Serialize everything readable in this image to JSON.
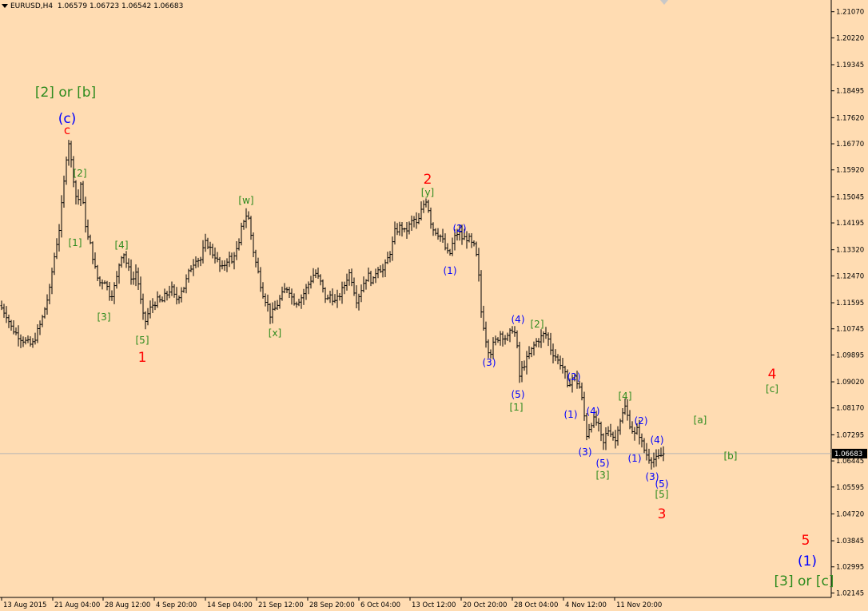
{
  "header": {
    "symbol": "EURUSD,H4",
    "ohlc": "1.06579 1.06723 1.06542 1.06683"
  },
  "price_tag": "1.06683",
  "colors": {
    "background": "#ffdcb2",
    "candles": "#000000",
    "red": "#ff0000",
    "blue": "#0000ff",
    "green": "#2e8b1e",
    "bid_line": "#b4b4b4",
    "price_tag_bg": "#000000"
  },
  "chart_data": {
    "type": "candlestick",
    "ylim": [
      1.02,
      1.214
    ],
    "y_ticks": [
      "1.21070",
      "1.20220",
      "1.19345",
      "1.18495",
      "1.17620",
      "1.16770",
      "1.15920",
      "1.15045",
      "1.14195",
      "1.13320",
      "1.12470",
      "1.11595",
      "1.10745",
      "1.09895",
      "1.09020",
      "1.08170",
      "1.07295",
      "1.06445",
      "1.05595",
      "1.04720",
      "1.03845",
      "1.02995",
      "1.02145"
    ],
    "x_ticks": [
      "13 Aug 2015",
      "21 Aug 04:00",
      "28 Aug 12:00",
      "4 Sep 20:00",
      "14 Sep 04:00",
      "21 Sep 12:00",
      "28 Sep 20:00",
      "6 Oct 04:00",
      "13 Oct 12:00",
      "20 Oct 20:00",
      "28 Oct 04:00",
      "4 Nov 12:00",
      "11 Nov 20:00"
    ],
    "last_price": 1.06683,
    "price_path": [
      [
        0,
        1.115
      ],
      [
        8,
        1.112
      ],
      [
        14,
        1.108
      ],
      [
        20,
        1.106
      ],
      [
        28,
        1.104
      ],
      [
        34,
        1.103
      ],
      [
        40,
        1.102
      ],
      [
        46,
        1.106
      ],
      [
        52,
        1.11
      ],
      [
        58,
        1.116
      ],
      [
        62,
        1.12
      ],
      [
        66,
        1.128
      ],
      [
        70,
        1.134
      ],
      [
        74,
        1.14
      ],
      [
        78,
        1.15
      ],
      [
        82,
        1.16
      ],
      [
        85,
        1.1705
      ],
      [
        88,
        1.164
      ],
      [
        91,
        1.158
      ],
      [
        94,
        1.153
      ],
      [
        97,
        1.146
      ],
      [
        100,
        1.157
      ],
      [
        103,
        1.15
      ],
      [
        106,
        1.143
      ],
      [
        110,
        1.137
      ],
      [
        114,
        1.134
      ],
      [
        118,
        1.128
      ],
      [
        122,
        1.124
      ],
      [
        126,
        1.122
      ],
      [
        130,
        1.124
      ],
      [
        134,
        1.121
      ],
      [
        138,
        1.118
      ],
      [
        142,
        1.12
      ],
      [
        146,
        1.124
      ],
      [
        150,
        1.13
      ],
      [
        154,
        1.133
      ],
      [
        158,
        1.129
      ],
      [
        162,
        1.126
      ],
      [
        166,
        1.123
      ],
      [
        170,
        1.126
      ],
      [
        174,
        1.121
      ],
      [
        178,
        1.112
      ],
      [
        182,
        1.11
      ],
      [
        186,
        1.113
      ],
      [
        190,
        1.115
      ],
      [
        194,
        1.116
      ],
      [
        198,
        1.117
      ],
      [
        202,
        1.116
      ],
      [
        206,
        1.118
      ],
      [
        210,
        1.119
      ],
      [
        214,
        1.121
      ],
      [
        218,
        1.118
      ],
      [
        222,
        1.117
      ],
      [
        226,
        1.12
      ],
      [
        230,
        1.121
      ],
      [
        234,
        1.124
      ],
      [
        238,
        1.127
      ],
      [
        242,
        1.129
      ],
      [
        246,
        1.131
      ],
      [
        250,
        1.129
      ],
      [
        254,
        1.133
      ],
      [
        258,
        1.136
      ],
      [
        262,
        1.134
      ],
      [
        266,
        1.132
      ],
      [
        270,
        1.131
      ],
      [
        274,
        1.128
      ],
      [
        278,
        1.127
      ],
      [
        282,
        1.129
      ],
      [
        286,
        1.131
      ],
      [
        290,
        1.129
      ],
      [
        294,
        1.133
      ],
      [
        298,
        1.133
      ],
      [
        302,
        1.14
      ],
      [
        306,
        1.144
      ],
      [
        310,
        1.145
      ],
      [
        314,
        1.138
      ],
      [
        318,
        1.131
      ],
      [
        322,
        1.127
      ],
      [
        326,
        1.122
      ],
      [
        330,
        1.118
      ],
      [
        334,
        1.116
      ],
      [
        338,
        1.112
      ],
      [
        342,
        1.113
      ],
      [
        346,
        1.115
      ],
      [
        350,
        1.117
      ],
      [
        354,
        1.119
      ],
      [
        358,
        1.121
      ],
      [
        362,
        1.12
      ],
      [
        366,
        1.117
      ],
      [
        370,
        1.116
      ],
      [
        374,
        1.117
      ],
      [
        378,
        1.118
      ],
      [
        382,
        1.12
      ],
      [
        386,
        1.122
      ],
      [
        390,
        1.124
      ],
      [
        394,
        1.126
      ],
      [
        398,
        1.124
      ],
      [
        402,
        1.122
      ],
      [
        406,
        1.118
      ],
      [
        410,
        1.117
      ],
      [
        414,
        1.119
      ],
      [
        418,
        1.116
      ],
      [
        422,
        1.117
      ],
      [
        426,
        1.119
      ],
      [
        430,
        1.121
      ],
      [
        434,
        1.124
      ],
      [
        438,
        1.126
      ],
      [
        442,
        1.121
      ],
      [
        446,
        1.117
      ],
      [
        450,
        1.119
      ],
      [
        454,
        1.122
      ],
      [
        458,
        1.124
      ],
      [
        462,
        1.125
      ],
      [
        466,
        1.122
      ],
      [
        470,
        1.126
      ],
      [
        474,
        1.128
      ],
      [
        478,
        1.126
      ],
      [
        482,
        1.128
      ],
      [
        486,
        1.131
      ],
      [
        490,
        1.134
      ],
      [
        494,
        1.139
      ],
      [
        498,
        1.14
      ],
      [
        502,
        1.141
      ],
      [
        506,
        1.139
      ],
      [
        510,
        1.14
      ],
      [
        514,
        1.142
      ],
      [
        518,
        1.143
      ],
      [
        522,
        1.141
      ],
      [
        526,
        1.145
      ],
      [
        530,
        1.148
      ],
      [
        534,
        1.15
      ],
      [
        538,
        1.143
      ],
      [
        542,
        1.14
      ],
      [
        546,
        1.139
      ],
      [
        550,
        1.138
      ],
      [
        554,
        1.136
      ],
      [
        558,
        1.133
      ],
      [
        562,
        1.131
      ],
      [
        566,
        1.135
      ],
      [
        570,
        1.138
      ],
      [
        574,
        1.139
      ],
      [
        578,
        1.137
      ],
      [
        582,
        1.137
      ],
      [
        586,
        1.137
      ],
      [
        590,
        1.135
      ],
      [
        594,
        1.134
      ],
      [
        598,
        1.128
      ],
      [
        602,
        1.113
      ],
      [
        606,
        1.107
      ],
      [
        610,
        1.101
      ],
      [
        614,
        1.1
      ],
      [
        618,
        1.103
      ],
      [
        622,
        1.104
      ],
      [
        626,
        1.106
      ],
      [
        630,
        1.105
      ],
      [
        634,
        1.104
      ],
      [
        638,
        1.106
      ],
      [
        642,
        1.108
      ],
      [
        646,
        1.104
      ],
      [
        650,
        1.092
      ],
      [
        654,
        1.095
      ],
      [
        658,
        1.097
      ],
      [
        662,
        1.099
      ],
      [
        666,
        1.101
      ],
      [
        670,
        1.103
      ],
      [
        674,
        1.104
      ],
      [
        678,
        1.105
      ],
      [
        682,
        1.106
      ],
      [
        686,
        1.104
      ],
      [
        690,
        1.1
      ],
      [
        694,
        1.099
      ],
      [
        698,
        1.097
      ],
      [
        702,
        1.096
      ],
      [
        706,
        1.094
      ],
      [
        710,
        1.088
      ],
      [
        714,
        1.091
      ],
      [
        718,
        1.092
      ],
      [
        722,
        1.09
      ],
      [
        726,
        1.088
      ],
      [
        730,
        1.081
      ],
      [
        734,
        1.073
      ],
      [
        738,
        1.076
      ],
      [
        742,
        1.078
      ],
      [
        746,
        1.077
      ],
      [
        750,
        1.075
      ],
      [
        754,
        1.069
      ],
      [
        758,
        1.073
      ],
      [
        762,
        1.075
      ],
      [
        766,
        1.073
      ],
      [
        770,
        1.071
      ],
      [
        774,
        1.077
      ],
      [
        778,
        1.079
      ],
      [
        782,
        1.082
      ],
      [
        786,
        1.078
      ],
      [
        790,
        1.075
      ],
      [
        794,
        1.073
      ],
      [
        798,
        1.075
      ],
      [
        802,
        1.071
      ],
      [
        806,
        1.068
      ],
      [
        810,
        1.066
      ],
      [
        814,
        1.065
      ],
      [
        818,
        1.065
      ],
      [
        822,
        1.065
      ],
      [
        826,
        1.066
      ],
      [
        830,
        1.06683
      ]
    ],
    "annotations": [
      {
        "text": "[2] or [b]",
        "color": "green",
        "size": 17
      },
      {
        "text": "(c)",
        "color": "blue",
        "size": 17
      },
      {
        "text": "c",
        "color": "red",
        "size": 15
      },
      {
        "text": "[2]",
        "color": "green",
        "size": 12
      },
      {
        "text": "[1]",
        "color": "green",
        "size": 12
      },
      {
        "text": "[4]",
        "color": "green",
        "size": 12
      },
      {
        "text": "[3]",
        "color": "green",
        "size": 12
      },
      {
        "text": "[5]",
        "color": "green",
        "size": 12
      },
      {
        "text": "1",
        "color": "red",
        "size": 17
      },
      {
        "text": "[w]",
        "color": "green",
        "size": 12
      },
      {
        "text": "[x]",
        "color": "green",
        "size": 12
      },
      {
        "text": "2",
        "color": "red",
        "size": 17
      },
      {
        "text": "[y]",
        "color": "green",
        "size": 12
      },
      {
        "text": "(2)",
        "color": "blue",
        "size": 12
      },
      {
        "text": "(1)",
        "color": "blue",
        "size": 12
      },
      {
        "text": "(4)",
        "color": "blue",
        "size": 12
      },
      {
        "text": "(3)",
        "color": "blue",
        "size": 12
      },
      {
        "text": "[2]",
        "color": "green",
        "size": 12
      },
      {
        "text": "(5)",
        "color": "blue",
        "size": 12
      },
      {
        "text": "[1]",
        "color": "green",
        "size": 12
      },
      {
        "text": "(2)",
        "color": "blue",
        "size": 12
      },
      {
        "text": "(1)",
        "color": "blue",
        "size": 12
      },
      {
        "text": "(4)",
        "color": "blue",
        "size": 12
      },
      {
        "text": "(3)",
        "color": "blue",
        "size": 12
      },
      {
        "text": "(5)",
        "color": "blue",
        "size": 12
      },
      {
        "text": "[3]",
        "color": "green",
        "size": 12
      },
      {
        "text": "[4]",
        "color": "green",
        "size": 12
      },
      {
        "text": "(2)",
        "color": "blue",
        "size": 12
      },
      {
        "text": "(1)",
        "color": "blue",
        "size": 12
      },
      {
        "text": "(4)",
        "color": "blue",
        "size": 12
      },
      {
        "text": "(3)",
        "color": "blue",
        "size": 12
      },
      {
        "text": "(5)",
        "color": "blue",
        "size": 12
      },
      {
        "text": "[5]",
        "color": "green",
        "size": 12
      },
      {
        "text": "3",
        "color": "red",
        "size": 17
      },
      {
        "text": "[a]",
        "color": "green",
        "size": 12
      },
      {
        "text": "[b]",
        "color": "green",
        "size": 12
      },
      {
        "text": "4",
        "color": "red",
        "size": 17
      },
      {
        "text": "[c]",
        "color": "green",
        "size": 12
      },
      {
        "text": "5",
        "color": "red",
        "size": 17
      },
      {
        "text": "(1)",
        "color": "blue",
        "size": 17
      },
      {
        "text": "[3] or [c]",
        "color": "green",
        "size": 17
      }
    ]
  }
}
